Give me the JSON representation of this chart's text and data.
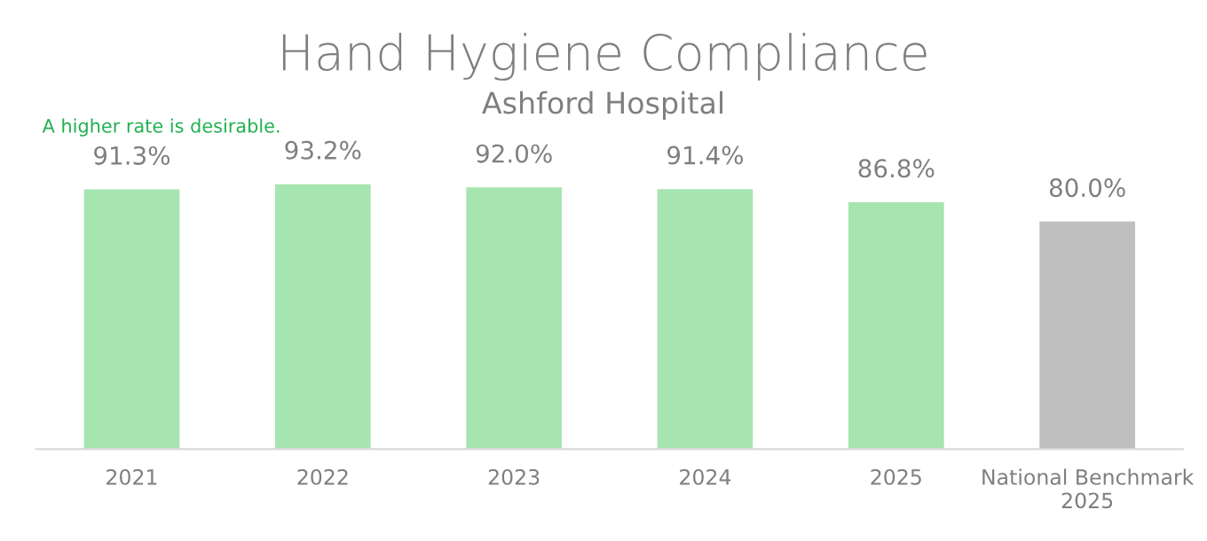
{
  "chart_data": {
    "type": "bar",
    "title": "Hand Hygiene Compliance",
    "subtitle": "Ashford Hospital",
    "annotations": [
      "A higher rate is desirable."
    ],
    "categories": [
      "2021",
      "2022",
      "2023",
      "2024",
      "2025",
      "National Benchmark\n2025"
    ],
    "values": [
      91.3,
      93.2,
      92.0,
      91.4,
      86.8,
      80.0
    ],
    "colors": [
      "#a6e5b0",
      "#a6e5b0",
      "#a6e5b0",
      "#a6e5b0",
      "#a6e5b0",
      "#bfbfbf"
    ],
    "value_labels": [
      "91.3%",
      "93.2%",
      "92.0%",
      "91.4%",
      "86.8%",
      "80.0%"
    ],
    "grid": false,
    "legend": false
  }
}
